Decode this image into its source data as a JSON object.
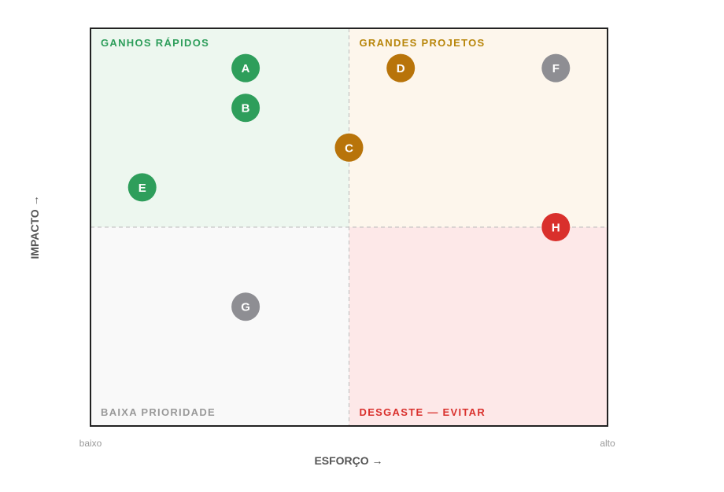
{
  "chart_data": {
    "type": "scatter",
    "x_axis": {
      "title": "ESFORÇO →",
      "min_label": "baixo",
      "max_label": "alto",
      "range": [
        0,
        10
      ]
    },
    "y_axis": {
      "title": "IMPACTO →",
      "range": [
        0,
        10
      ]
    },
    "grid": false,
    "dividers": {
      "x": 5,
      "y": 5
    },
    "quadrants": [
      {
        "id": "top-left",
        "label": "GANHOS RÁPIDOS",
        "color": "#2e9e5b",
        "fill": "#edf7ef"
      },
      {
        "id": "top-right",
        "label": "GRANDES PROJETOS",
        "color": "#b8860b",
        "fill": "#fdf6ec"
      },
      {
        "id": "bottom-left",
        "label": "BAIXA PRIORIDADE",
        "color": "#999999",
        "fill": "#f9f9f9"
      },
      {
        "id": "bottom-right",
        "label": "DESGASTE — EVITAR",
        "color": "#d9302c",
        "fill": "#fde8e8"
      }
    ],
    "points": [
      {
        "label": "A",
        "x": 3.0,
        "y": 9.0,
        "color": "#2e9e5b"
      },
      {
        "label": "B",
        "x": 3.0,
        "y": 8.0,
        "color": "#2e9e5b"
      },
      {
        "label": "C",
        "x": 5.0,
        "y": 7.0,
        "color": "#b8740a"
      },
      {
        "label": "D",
        "x": 6.0,
        "y": 9.0,
        "color": "#b8740a"
      },
      {
        "label": "E",
        "x": 1.0,
        "y": 6.0,
        "color": "#2e9e5b"
      },
      {
        "label": "F",
        "x": 9.0,
        "y": 9.0,
        "color": "#8e8e93"
      },
      {
        "label": "G",
        "x": 3.0,
        "y": 3.0,
        "color": "#8e8e93"
      },
      {
        "label": "H",
        "x": 9.0,
        "y": 5.0,
        "color": "#d9302c"
      }
    ]
  }
}
